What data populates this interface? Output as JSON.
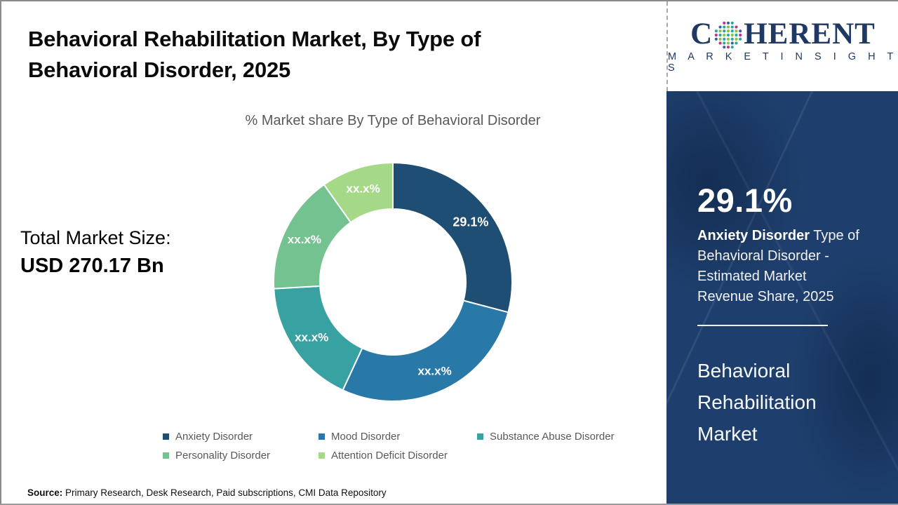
{
  "header": {
    "title_line1": "Behavioral Rehabilitation Market, By Type of",
    "title_line2": "Behavioral Disorder, 2025"
  },
  "chart_data": {
    "type": "pie",
    "subtype": "donut",
    "title": "% Market share By Type of Behavioral Disorder",
    "inner_radius_ratio": 0.61,
    "start_angle_deg": 0,
    "legend_position": "bottom",
    "slices": [
      {
        "label": "Anxiety Disorder",
        "value": 29.1,
        "display": "29.1%",
        "color": "#1f4e74"
      },
      {
        "label": "Mood Disorder",
        "value": 27.8,
        "display": "xx.x%",
        "color": "#2878a8"
      },
      {
        "label": "Substance Abuse Disorder",
        "value": 17.2,
        "display": "xx.x%",
        "color": "#38a1a1"
      },
      {
        "label": "Personality Disorder",
        "value": 16.1,
        "display": "xx.x%",
        "color": "#74c28f"
      },
      {
        "label": "Attention Deficit Disorder",
        "value": 9.8,
        "display": "xx.x%",
        "color": "#a5d987"
      }
    ]
  },
  "total_market": {
    "label": "Total Market Size:",
    "value": "USD 270.17 Bn"
  },
  "source": {
    "label": "Source:",
    "text": " Primary Research, Desk Research, Paid subscriptions, CMI Data Repository"
  },
  "brand": {
    "logo_prefix": "C",
    "logo_suffix": "HERENT",
    "logo_subtitle": "M A R K E T   I N S I G H T S",
    "logo_color": "#1f3864"
  },
  "sidebar": {
    "stat_value": "29.1%",
    "stat_bold": "Anxiety Disorder",
    "stat_rest": " Type of Behavioral Disorder - Estimated Market Revenue Share, 2025",
    "market_name": "Behavioral Rehabilitation Market",
    "panel_color": "#1e3f6d"
  }
}
